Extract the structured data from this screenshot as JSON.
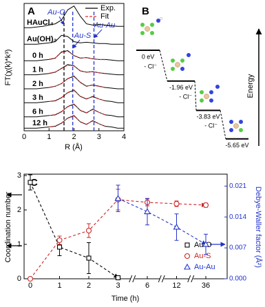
{
  "chart_data": [
    {
      "type": "exafs",
      "panel_label": "A",
      "x_label": "R (Å)",
      "y_label": "FT(χ(k)*k³)",
      "x": [
        0,
        0.25,
        0.5,
        0.75,
        1,
        1.25,
        1.5,
        1.75,
        2,
        2.25,
        2.5,
        2.75,
        3,
        3.25,
        3.5,
        3.75,
        4
      ],
      "xlim": [
        0,
        4
      ],
      "xticks": [
        0,
        1,
        2,
        3,
        4
      ],
      "ylim": [
        0,
        10
      ],
      "legend": [
        {
          "label": "Exp.",
          "color": "#000000"
        },
        {
          "label": "Fit",
          "color": "#e03030"
        }
      ],
      "references": [
        {
          "label": "Au-O",
          "value": 1.6,
          "color": "#000000"
        },
        {
          "label": "Au-S",
          "value": 1.95,
          "color": "#2233cc"
        },
        {
          "label": "Au-Au",
          "value": 2.8,
          "color": "#2233cc"
        }
      ],
      "series": [
        {
          "name": "HAuCl₄",
          "color": "#000000",
          "values": [
            8.1,
            8.1,
            8.15,
            8.2,
            8.3,
            8.4,
            8.7,
            9.5,
            9.8,
            9.0,
            8.4,
            8.3,
            8.35,
            8.3,
            8.25,
            8.2,
            8.2
          ]
        },
        {
          "name": "Au(OH)₃",
          "color": "#000000",
          "values": [
            6.8,
            6.8,
            6.8,
            6.85,
            6.9,
            7.0,
            7.5,
            7.4,
            7.0,
            6.9,
            6.95,
            6.9,
            6.85,
            6.85,
            6.8,
            6.8,
            6.8
          ]
        },
        {
          "name": "0 h",
          "color": "#000000",
          "values": [
            5.5,
            5.5,
            5.5,
            5.55,
            5.6,
            5.7,
            6.2,
            6.3,
            5.9,
            5.7,
            5.75,
            5.65,
            5.6,
            5.6,
            5.55,
            5.5,
            5.5
          ],
          "fit": [
            null,
            null,
            null,
            null,
            5.62,
            5.72,
            6.15,
            6.25,
            5.92,
            5.72,
            5.73,
            5.66,
            5.6,
            5.58,
            null,
            null,
            null
          ]
        },
        {
          "name": "1 h",
          "color": "#000000",
          "values": [
            4.4,
            4.4,
            4.4,
            4.45,
            4.5,
            4.6,
            4.9,
            5.2,
            5.1,
            4.7,
            4.6,
            4.65,
            4.55,
            4.5,
            4.45,
            4.4,
            4.4
          ],
          "fit": [
            null,
            null,
            null,
            null,
            4.52,
            4.62,
            4.88,
            5.15,
            5.08,
            4.72,
            4.6,
            4.63,
            4.55,
            4.48,
            null,
            null,
            null
          ]
        },
        {
          "name": "2 h",
          "color": "#000000",
          "values": [
            3.3,
            3.3,
            3.3,
            3.35,
            3.4,
            3.5,
            3.7,
            4.1,
            4.3,
            3.8,
            3.5,
            3.6,
            3.5,
            3.4,
            3.35,
            3.3,
            3.3
          ],
          "fit": [
            null,
            null,
            null,
            null,
            3.42,
            3.5,
            3.72,
            4.08,
            4.25,
            3.82,
            3.52,
            3.58,
            3.48,
            3.4,
            null,
            null,
            null
          ]
        },
        {
          "name": "3 h",
          "color": "#000000",
          "values": [
            2.2,
            2.2,
            2.2,
            2.25,
            2.3,
            2.35,
            2.6,
            3.0,
            3.2,
            2.7,
            2.5,
            2.7,
            2.5,
            2.35,
            2.3,
            2.2,
            2.2
          ],
          "fit": [
            null,
            null,
            null,
            null,
            2.3,
            2.38,
            2.62,
            2.98,
            3.15,
            2.72,
            2.52,
            2.66,
            2.5,
            2.35,
            null,
            null,
            null
          ]
        },
        {
          "name": "6 h",
          "color": "#000000",
          "values": [
            1.1,
            1.1,
            1.1,
            1.15,
            1.2,
            1.25,
            1.5,
            1.9,
            2.1,
            1.6,
            1.4,
            1.7,
            1.45,
            1.25,
            1.2,
            1.1,
            1.1
          ],
          "fit": [
            null,
            null,
            null,
            null,
            1.2,
            1.28,
            1.52,
            1.88,
            2.05,
            1.62,
            1.42,
            1.66,
            1.45,
            1.26,
            null,
            null,
            null
          ]
        },
        {
          "name": "12 h",
          "color": "#000000",
          "values": [
            0.2,
            0.2,
            0.2,
            0.25,
            0.3,
            0.35,
            0.6,
            1.0,
            1.2,
            0.7,
            0.5,
            0.8,
            0.55,
            0.35,
            0.3,
            0.2,
            0.2
          ],
          "fit": [
            null,
            null,
            null,
            null,
            0.3,
            0.38,
            0.62,
            0.98,
            1.15,
            0.72,
            0.52,
            0.76,
            0.55,
            0.36,
            null,
            null,
            null
          ]
        }
      ]
    },
    {
      "type": "energy",
      "panel_label": "B",
      "y_label": "Energy",
      "values": [
        0,
        -1.96,
        -3.83,
        -5.65
      ],
      "value_labels": [
        "0 eV",
        "-1.96 eV",
        "-3.83 eV",
        "-5.65 eV"
      ],
      "ylim": [
        -6.3,
        0.3
      ],
      "steps": [
        "- Cl⁻",
        "- Cl⁻",
        "- Cl⁻"
      ]
    },
    {
      "type": "coordination",
      "panel_label": "C",
      "x_label": "Time (h)",
      "y_label": "Coordination number",
      "y2_label": "Debye-Waller factor (Å²)",
      "categories": [
        "0",
        "1",
        "2",
        "3",
        "6",
        "12",
        "36"
      ],
      "ylim": [
        0,
        3.04
      ],
      "yticks": [
        0,
        1,
        2,
        3
      ],
      "y2lim": [
        0,
        0.0237
      ],
      "y2ticks": [
        {
          "value": 0,
          "label": "0.000"
        },
        {
          "value": 0.007,
          "label": "0.007"
        },
        {
          "value": 0.014,
          "label": "0.014"
        },
        {
          "value": 0.021,
          "label": "0.021"
        }
      ],
      "series": [
        {
          "name": "Au-O",
          "color": "#000000",
          "marker": "square",
          "values": [
            2.8,
            0.92,
            0.6,
            0.03,
            null,
            null,
            null
          ],
          "errors": [
            0.22,
            0.25,
            0.45,
            null,
            null,
            null,
            null
          ]
        },
        {
          "name": "Au-S",
          "color": "#cc2222",
          "marker": "circle",
          "values": [
            0,
            1.12,
            1.4,
            2.3,
            2.22,
            2.18,
            2.14
          ],
          "errors": [
            null,
            0.12,
            0.2,
            0.3,
            0.1,
            0.08,
            0.06
          ]
        },
        {
          "name": "Au-Au",
          "color": "#2233cc",
          "marker": "triangle",
          "axis": "y2",
          "values": [
            null,
            null,
            null,
            0.0182,
            0.0152,
            0.0117,
            0.0078
          ],
          "errors": [
            null,
            null,
            null,
            0.003,
            0.003,
            0.003,
            0.0023
          ]
        }
      ]
    }
  ]
}
